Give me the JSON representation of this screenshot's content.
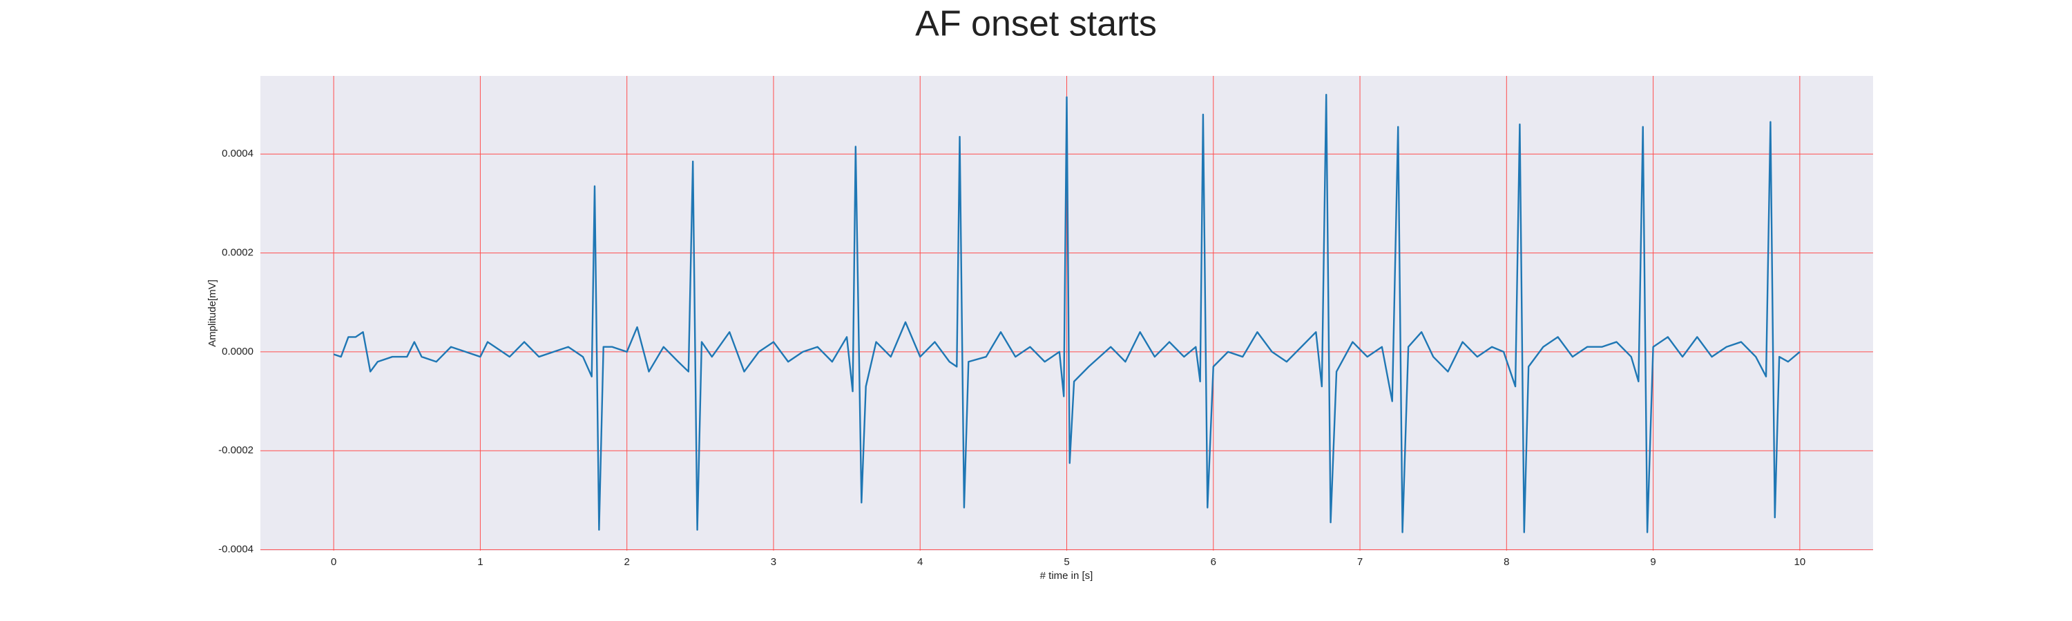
{
  "chart_data": {
    "type": "line",
    "title": "AF onset starts",
    "xlabel": "# time in [s]",
    "ylabel": "Amplitude[mV]",
    "color": "#1f77b4",
    "grid": true,
    "grid_color": "#ff4d4d",
    "xlim": [
      -0.5,
      10.5
    ],
    "ylim": [
      -0.000402,
      0.000558
    ],
    "xticks": [
      0,
      1,
      2,
      3,
      4,
      5,
      6,
      7,
      8,
      9,
      10
    ],
    "yticks": [
      -0.0004,
      -0.0002,
      {
        "value": 0,
        "label": "0.0000"
      },
      0.0002,
      0.0004
    ],
    "x": [
      0.0,
      0.05,
      0.1,
      0.15,
      0.2,
      0.25,
      0.3,
      0.4,
      0.5,
      0.55,
      0.6,
      0.7,
      0.8,
      0.9,
      1.0,
      1.05,
      1.1,
      1.2,
      1.3,
      1.4,
      1.5,
      1.6,
      1.7,
      1.76,
      1.78,
      1.81,
      1.84,
      1.9,
      2.0,
      2.07,
      2.15,
      2.25,
      2.35,
      2.42,
      2.45,
      2.48,
      2.51,
      2.58,
      2.7,
      2.8,
      2.9,
      3.0,
      3.1,
      3.2,
      3.3,
      3.4,
      3.5,
      3.54,
      3.56,
      3.6,
      3.63,
      3.7,
      3.8,
      3.9,
      4.0,
      4.1,
      4.2,
      4.25,
      4.27,
      4.3,
      4.33,
      4.45,
      4.55,
      4.65,
      4.75,
      4.85,
      4.95,
      4.98,
      5.0,
      5.02,
      5.05,
      5.15,
      5.3,
      5.4,
      5.5,
      5.6,
      5.7,
      5.8,
      5.88,
      5.91,
      5.93,
      5.96,
      6.0,
      6.1,
      6.2,
      6.3,
      6.4,
      6.5,
      6.6,
      6.7,
      6.74,
      6.77,
      6.8,
      6.84,
      6.95,
      7.05,
      7.15,
      7.22,
      7.26,
      7.29,
      7.33,
      7.42,
      7.5,
      7.6,
      7.7,
      7.8,
      7.9,
      7.98,
      8.06,
      8.09,
      8.12,
      8.15,
      8.25,
      8.35,
      8.45,
      8.55,
      8.65,
      8.75,
      8.85,
      8.9,
      8.93,
      8.96,
      9.0,
      9.1,
      9.2,
      9.3,
      9.4,
      9.5,
      9.6,
      9.7,
      9.77,
      9.8,
      9.83,
      9.86,
      9.92,
      10.0
    ],
    "values": [
      -5e-06,
      -1e-05,
      3e-05,
      3e-05,
      4e-05,
      -4e-05,
      -2e-05,
      -1e-05,
      -1e-05,
      2e-05,
      -1e-05,
      -2e-05,
      1e-05,
      0.0,
      -1e-05,
      2e-05,
      1e-05,
      -1e-05,
      2e-05,
      -1e-05,
      0.0,
      1e-05,
      -1e-05,
      -5e-05,
      0.000335,
      -0.00036,
      1e-05,
      1e-05,
      0.0,
      5e-05,
      -4e-05,
      1e-05,
      -2e-05,
      -4e-05,
      0.000385,
      -0.00036,
      2e-05,
      -1e-05,
      4e-05,
      -4e-05,
      0.0,
      2e-05,
      -2e-05,
      0.0,
      1e-05,
      -2e-05,
      3e-05,
      -8e-05,
      0.000415,
      -0.000305,
      -7e-05,
      2e-05,
      -1e-05,
      6e-05,
      -1e-05,
      2e-05,
      -2e-05,
      -3e-05,
      0.000435,
      -0.000315,
      -2e-05,
      -1e-05,
      4e-05,
      -1e-05,
      1e-05,
      -2e-05,
      0.0,
      -9e-05,
      0.000515,
      -0.000225,
      -6e-05,
      -3e-05,
      1e-05,
      -2e-05,
      4e-05,
      -1e-05,
      2e-05,
      -1e-05,
      1e-05,
      -6e-05,
      0.00048,
      -0.000315,
      -3e-05,
      0.0,
      -1e-05,
      4e-05,
      0.0,
      -2e-05,
      1e-05,
      4e-05,
      -7e-05,
      0.00052,
      -0.000345,
      -4e-05,
      2e-05,
      -1e-05,
      1e-05,
      -0.0001,
      0.000455,
      -0.000365,
      1e-05,
      4e-05,
      -1e-05,
      -4e-05,
      2e-05,
      -1e-05,
      1e-05,
      0.0,
      -7e-05,
      0.00046,
      -0.000365,
      -3e-05,
      1e-05,
      3e-05,
      -1e-05,
      1e-05,
      1e-05,
      2e-05,
      -1e-05,
      -6e-05,
      0.000455,
      -0.000365,
      1e-05,
      3e-05,
      -1e-05,
      3e-05,
      -1e-05,
      1e-05,
      2e-05,
      -1e-05,
      -5e-05,
      0.000465,
      -0.000335,
      -1e-05,
      -2e-05,
      0.0
    ]
  }
}
